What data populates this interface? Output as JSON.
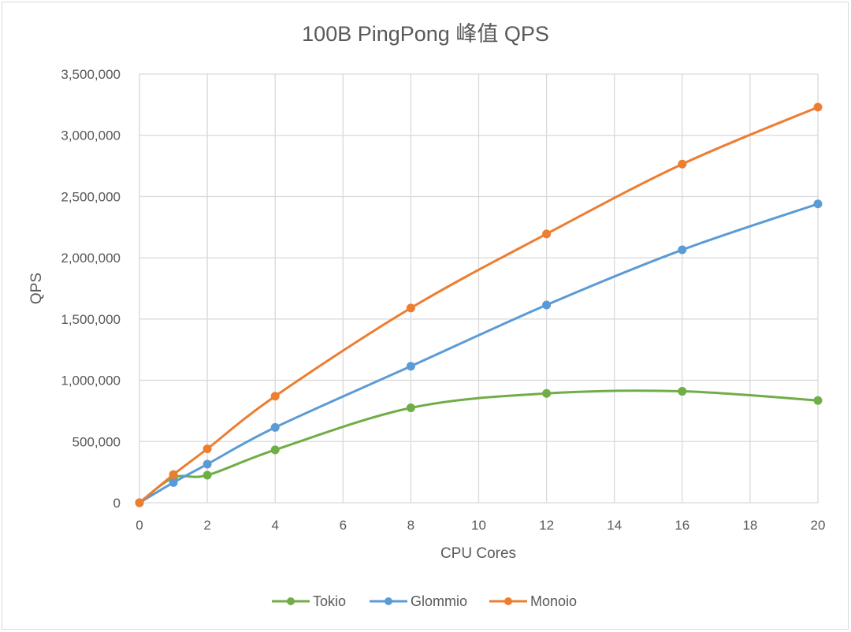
{
  "chart_data": {
    "type": "line",
    "title": "100B PingPong 峰值 QPS",
    "xlabel": "CPU Cores",
    "ylabel": "QPS",
    "xlim": [
      0,
      20
    ],
    "ylim": [
      0,
      3500000
    ],
    "x_ticks": [
      0,
      2,
      4,
      6,
      8,
      10,
      12,
      14,
      16,
      18,
      20
    ],
    "x_tick_labels": [
      "0",
      "2",
      "4",
      "6",
      "8",
      "10",
      "12",
      "14",
      "16",
      "18",
      "20"
    ],
    "y_ticks": [
      0,
      500000,
      1000000,
      1500000,
      2000000,
      2500000,
      3000000,
      3500000
    ],
    "y_tick_labels": [
      "0",
      "500,000",
      "1,000,000",
      "1,500,000",
      "2,000,000",
      "2,500,000",
      "3,000,000",
      "3,500,000"
    ],
    "grid": true,
    "smooth": true,
    "legend_position": "bottom",
    "x": [
      0,
      1,
      2,
      4,
      8,
      12,
      16,
      20
    ],
    "series": [
      {
        "name": "Tokio",
        "color": "#70ad47",
        "values": [
          0,
          205000,
          225000,
          432000,
          775000,
          893000,
          910000,
          835000
        ]
      },
      {
        "name": "Glommio",
        "color": "#5b9bd5",
        "values": [
          0,
          165000,
          315000,
          615000,
          1115000,
          1615000,
          2065000,
          2440000
        ]
      },
      {
        "name": "Monoio",
        "color": "#ed7d31",
        "values": [
          0,
          230000,
          440000,
          870000,
          1590000,
          2195000,
          2765000,
          3230000
        ]
      }
    ]
  }
}
